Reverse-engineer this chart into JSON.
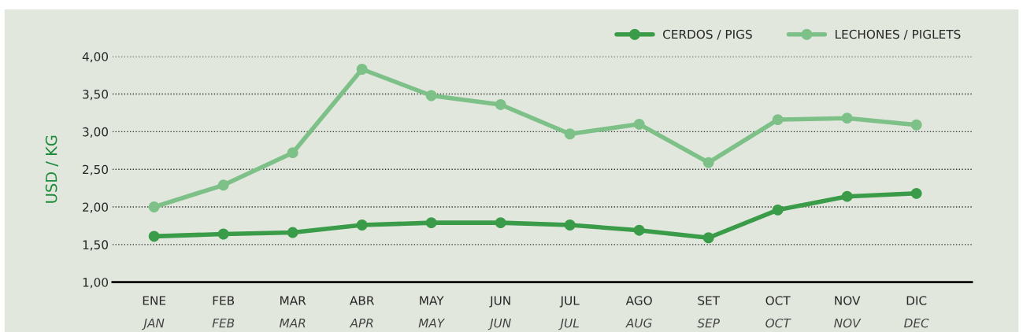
{
  "chart_data": {
    "type": "line",
    "ylabel": "USD / KG",
    "categories": [
      "ENE\nJAN",
      "FEB\nFEB",
      "MAR\nMAR",
      "ABR\nAPR",
      "MAY\nMAY",
      "JUN\nJUN",
      "JUL\nJUL",
      "AGO\nAUG",
      "SET\nSEP",
      "OCT\nOCT",
      "NOV\nNOV",
      "DIC\nDEC"
    ],
    "series": [
      {
        "name": "CERDOS / PIGS",
        "color": "#3a9b48",
        "values": [
          1.61,
          1.64,
          1.66,
          1.76,
          1.79,
          1.79,
          1.76,
          1.69,
          1.59,
          1.96,
          2.14,
          2.18
        ]
      },
      {
        "name": "LECHONES / PIGLETS",
        "color": "#7dc088",
        "values": [
          2.0,
          2.29,
          2.72,
          3.83,
          3.48,
          3.36,
          2.97,
          3.1,
          2.59,
          3.16,
          3.18,
          3.09
        ]
      }
    ],
    "ylim": [
      1.0,
      4.0
    ],
    "yticks": [
      {
        "value": 1.0,
        "label": "1,00"
      },
      {
        "value": 1.5,
        "label": "1,50"
      },
      {
        "value": 2.0,
        "label": "2,00"
      },
      {
        "value": 2.5,
        "label": "2,50"
      },
      {
        "value": 3.0,
        "label": "3,00"
      },
      {
        "value": 3.5,
        "label": "3,50"
      },
      {
        "value": 4.0,
        "label": "4,00"
      }
    ],
    "grid": "y",
    "legend": "top right",
    "marker": "circle",
    "line_style": "solid"
  }
}
